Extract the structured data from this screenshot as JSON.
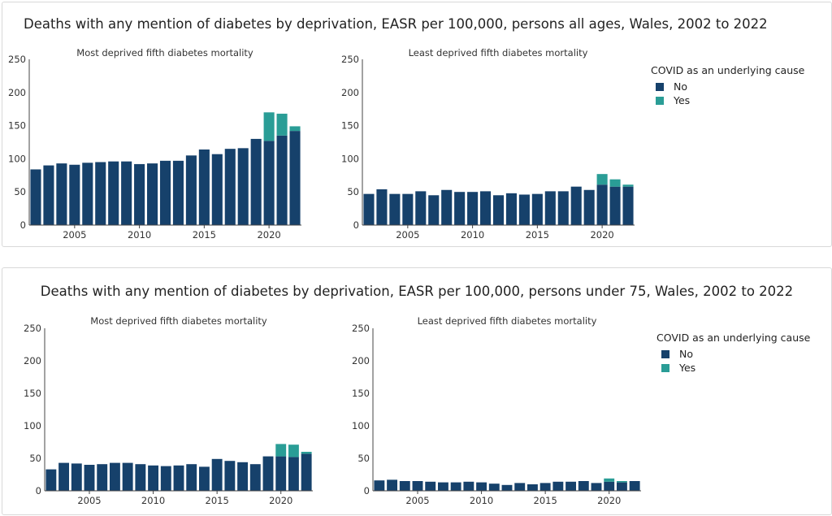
{
  "colors": {
    "no": "#16416b",
    "yes": "#2a9d96",
    "axis": "#444444"
  },
  "legend": {
    "title": "COVID as an underlying cause",
    "items": [
      "No",
      "Yes"
    ]
  },
  "chart_data": [
    {
      "type": "bar",
      "stacked": true,
      "title": "Deaths with any mention of diabetes by deprivation, EASR per 100,000, persons all ages, Wales, 2002 to 2022",
      "subplots": [
        {
          "title": "Most deprived fifth diabetes mortality",
          "x": [
            2002,
            2003,
            2004,
            2005,
            2006,
            2007,
            2008,
            2009,
            2010,
            2011,
            2012,
            2013,
            2014,
            2015,
            2016,
            2017,
            2018,
            2019,
            2020,
            2021,
            2022
          ],
          "xticks": [
            2005,
            2010,
            2015,
            2020
          ],
          "yticks": [
            0,
            50,
            100,
            150,
            200,
            250
          ],
          "ylim": [
            0,
            250
          ],
          "series": [
            {
              "name": "No",
              "values": [
                84,
                90,
                93,
                91,
                94,
                95,
                96,
                96,
                92,
                93,
                97,
                97,
                105,
                114,
                107,
                115,
                116,
                130,
                127,
                135,
                142
              ]
            },
            {
              "name": "Yes",
              "values": [
                0,
                0,
                0,
                0,
                0,
                0,
                0,
                0,
                0,
                0,
                0,
                0,
                0,
                0,
                0,
                0,
                0,
                0,
                43,
                33,
                7
              ]
            }
          ]
        },
        {
          "title": "Least deprived fifth diabetes mortality",
          "x": [
            2002,
            2003,
            2004,
            2005,
            2006,
            2007,
            2008,
            2009,
            2010,
            2011,
            2012,
            2013,
            2014,
            2015,
            2016,
            2017,
            2018,
            2019,
            2020,
            2021,
            2022
          ],
          "xticks": [
            2005,
            2010,
            2015,
            2020
          ],
          "yticks": [
            0,
            50,
            100,
            150,
            200,
            250
          ],
          "ylim": [
            0,
            250
          ],
          "series": [
            {
              "name": "No",
              "values": [
                47,
                54,
                47,
                47,
                51,
                45,
                53,
                50,
                50,
                51,
                45,
                48,
                46,
                47,
                51,
                51,
                58,
                53,
                61,
                58,
                58
              ]
            },
            {
              "name": "Yes",
              "values": [
                0,
                0,
                0,
                0,
                0,
                0,
                0,
                0,
                0,
                0,
                0,
                0,
                0,
                0,
                0,
                0,
                0,
                0,
                16,
                11,
                3
              ]
            }
          ]
        }
      ]
    },
    {
      "type": "bar",
      "stacked": true,
      "title": "Deaths with any mention of diabetes by deprivation, EASR per 100,000, persons under 75, Wales, 2002 to 2022",
      "subplots": [
        {
          "title": "Most deprived fifth diabetes mortality",
          "x": [
            2002,
            2003,
            2004,
            2005,
            2006,
            2007,
            2008,
            2009,
            2010,
            2011,
            2012,
            2013,
            2014,
            2015,
            2016,
            2017,
            2018,
            2019,
            2020,
            2021,
            2022
          ],
          "xticks": [
            2005,
            2010,
            2015,
            2020
          ],
          "yticks": [
            0,
            50,
            100,
            150,
            200,
            250
          ],
          "ylim": [
            0,
            250
          ],
          "series": [
            {
              "name": "No",
              "values": [
                33,
                43,
                42,
                40,
                41,
                43,
                43,
                41,
                39,
                38,
                39,
                41,
                37,
                49,
                46,
                44,
                41,
                53,
                53,
                52,
                57
              ]
            },
            {
              "name": "Yes",
              "values": [
                0,
                0,
                0,
                0,
                0,
                0,
                0,
                0,
                0,
                0,
                0,
                0,
                0,
                0,
                0,
                0,
                0,
                0,
                19,
                19,
                3
              ]
            }
          ]
        },
        {
          "title": "Least deprived fifth diabetes mortality",
          "x": [
            2002,
            2003,
            2004,
            2005,
            2006,
            2007,
            2008,
            2009,
            2010,
            2011,
            2012,
            2013,
            2014,
            2015,
            2016,
            2017,
            2018,
            2019,
            2020,
            2021,
            2022
          ],
          "xticks": [
            2005,
            2010,
            2015,
            2020
          ],
          "yticks": [
            0,
            50,
            100,
            150,
            200,
            250
          ],
          "ylim": [
            0,
            250
          ],
          "series": [
            {
              "name": "No",
              "values": [
                16,
                17,
                15,
                15,
                14,
                13,
                13,
                14,
                13,
                11,
                9,
                12,
                10,
                12,
                14,
                14,
                15,
                12,
                14,
                13,
                15
              ]
            },
            {
              "name": "Yes",
              "values": [
                0,
                0,
                0,
                0,
                0,
                0,
                0,
                0,
                0,
                0,
                0,
                0,
                0,
                0,
                0,
                0,
                0,
                0,
                5,
                2,
                0
              ]
            }
          ]
        }
      ]
    }
  ]
}
